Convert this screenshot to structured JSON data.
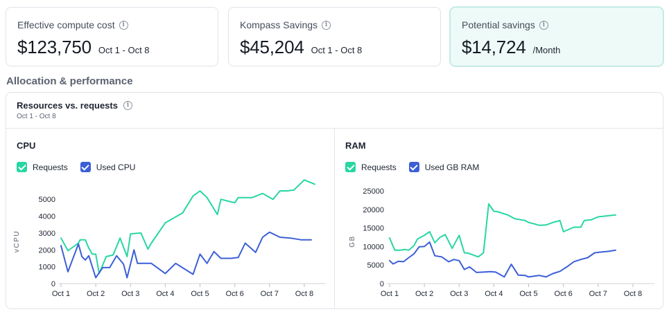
{
  "colors": {
    "requests": "#27d6a3",
    "used": "#3b5fd8",
    "grid": "#e6e8ec"
  },
  "cards": [
    {
      "label": "Effective compute cost",
      "value": "$123,750",
      "sub": "Oct 1 - Oct 8",
      "icon": "info-icon"
    },
    {
      "label": "Kompass Savings",
      "value": "$45,204",
      "sub": "Oct 1 - Oct 8",
      "icon": "info-icon"
    },
    {
      "label": "Potential savings",
      "value": "$14,724",
      "sub": "/Month",
      "icon": "info-icon"
    }
  ],
  "section_title": "Allocation & performance",
  "panel": {
    "title": "Resources vs. requests",
    "subtitle": "Oct 1 - Oct 8",
    "icon": "info-icon"
  },
  "chart_data": [
    {
      "type": "line",
      "title": "CPU",
      "ylabel": "vCPU",
      "xlabel": "",
      "ylim": [
        0,
        5500
      ],
      "yticks": [
        0,
        1000,
        2000,
        3000,
        4000,
        5000
      ],
      "categories": [
        "Oct 1",
        "Oct 2",
        "Oct 3",
        "Oct 4",
        "Oct 5",
        "Oct 6",
        "Oct 7",
        "Oct 8"
      ],
      "xlim": [
        1,
        8.5
      ],
      "series": [
        {
          "name": "Requests",
          "x": [
            1,
            1.2,
            1.5,
            1.55,
            1.7,
            1.8,
            1.9,
            2.0,
            2.1,
            2.3,
            2.5,
            2.7,
            2.9,
            3.0,
            3.3,
            3.5,
            3.6,
            4.0,
            4.5,
            4.8,
            5.0,
            5.2,
            5.5,
            5.6,
            6.0,
            6.1,
            6.5,
            6.8,
            7.1,
            7.3,
            7.5,
            7.7,
            8.0,
            8.3
          ],
          "y": [
            2700,
            1950,
            2400,
            2600,
            2600,
            2100,
            1750,
            1750,
            600,
            1600,
            1700,
            2700,
            1600,
            2950,
            3000,
            2050,
            2400,
            3600,
            4200,
            5200,
            5500,
            5100,
            4100,
            5000,
            4800,
            5100,
            5100,
            5350,
            5000,
            5500,
            5500,
            5550,
            6150,
            5900
          ]
        },
        {
          "name": "Used CPU",
          "x": [
            1,
            1.2,
            1.5,
            1.6,
            1.7,
            1.8,
            1.9,
            2.0,
            2.2,
            2.4,
            2.6,
            2.8,
            2.9,
            3.1,
            3.2,
            3.5,
            3.6,
            4.0,
            4.3,
            4.8,
            5.0,
            5.2,
            5.4,
            5.6,
            5.9,
            6.1,
            6.3,
            6.6,
            6.8,
            7.0,
            7.3,
            7.6,
            7.9,
            8.0,
            8.1,
            8.2
          ],
          "y": [
            2250,
            700,
            2350,
            1600,
            1400,
            1650,
            1000,
            350,
            950,
            950,
            1650,
            1150,
            350,
            2000,
            1200,
            1200,
            1200,
            600,
            1200,
            550,
            1750,
            1200,
            1900,
            1500,
            1500,
            1550,
            2400,
            1850,
            2750,
            3050,
            2750,
            2700,
            2600,
            2600,
            2600,
            2600
          ]
        }
      ]
    },
    {
      "type": "line",
      "title": "RAM",
      "ylabel": "GB",
      "xlabel": "",
      "ylim": [
        0,
        25000
      ],
      "yticks": [
        0,
        5000,
        10000,
        15000,
        20000,
        25000
      ],
      "categories": [
        "Oct 1",
        "Oct 2",
        "Oct 3",
        "Oct 4",
        "Oct 5",
        "Oct 6",
        "Oct 7",
        "Oct 8"
      ],
      "xlim": [
        1,
        8.5
      ],
      "series": [
        {
          "name": "Requests",
          "x": [
            1,
            1.15,
            1.3,
            1.45,
            1.55,
            1.7,
            1.8,
            2.0,
            2.15,
            2.3,
            2.45,
            2.6,
            2.8,
            3.0,
            3.15,
            3.25,
            3.35,
            3.55,
            3.7,
            3.85,
            4.0,
            4.1,
            4.4,
            4.6,
            4.9,
            5.0,
            5.2,
            5.3,
            5.5,
            5.7,
            5.9,
            6.0,
            6.3,
            6.5,
            6.6,
            6.8,
            7.0,
            7.3,
            7.5
          ],
          "y": [
            12300,
            9000,
            9000,
            9200,
            9000,
            10200,
            12000,
            13000,
            14000,
            11000,
            12500,
            13200,
            9500,
            13000,
            8300,
            8200,
            7900,
            7200,
            8300,
            21500,
            19500,
            19400,
            18500,
            17500,
            17000,
            16500,
            16000,
            15700,
            15800,
            16500,
            17000,
            14000,
            15200,
            15200,
            17000,
            17200,
            18000,
            18300,
            18500
          ]
        },
        {
          "name": "Used GB RAM",
          "x": [
            1,
            1.1,
            1.25,
            1.4,
            1.55,
            1.7,
            1.85,
            2.0,
            2.15,
            2.3,
            2.5,
            2.7,
            2.85,
            3.0,
            3.15,
            3.3,
            3.5,
            3.7,
            3.9,
            4.05,
            4.3,
            4.5,
            4.7,
            4.9,
            5.0,
            5.3,
            5.5,
            5.7,
            5.9,
            6.1,
            6.3,
            6.5,
            6.7,
            6.9,
            7.1,
            7.3,
            7.5
          ],
          "y": [
            6200,
            5300,
            6000,
            5900,
            7000,
            8000,
            9900,
            10000,
            11200,
            7500,
            7200,
            5900,
            6500,
            6200,
            3800,
            4500,
            3000,
            3100,
            3200,
            3100,
            1800,
            5200,
            2300,
            2200,
            1800,
            2200,
            1800,
            2700,
            3300,
            4500,
            5900,
            6500,
            7000,
            8300,
            8500,
            8700,
            9000
          ]
        }
      ]
    }
  ]
}
